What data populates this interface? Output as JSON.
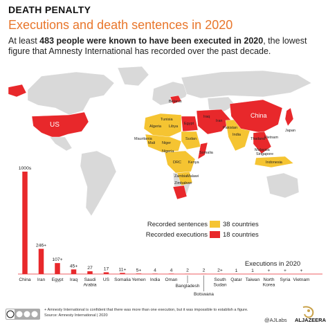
{
  "header": {
    "kicker": "DEATH PENALTY",
    "headline": "Executions and death sentences in 2020",
    "subtitle_pre": "At least ",
    "subtitle_bold": "483 people were known to have been executed in 2020",
    "subtitle_post": ", the lowest figure that Amnesty International has recorded over the past decade."
  },
  "colors": {
    "executions": "#e8282b",
    "sentences": "#f5c432",
    "land": "#d9d9d9",
    "kicker": "#111111",
    "headline": "#e8762b"
  },
  "map": {
    "country_labels": {
      "us": "US",
      "belarus": "Belarus",
      "tunisia": "Tunisia",
      "algeria": "Algeria",
      "libya": "Libya",
      "egypt": "Egypt",
      "mauritania": "Mauritania",
      "mali": "Mali",
      "niger": "Niger",
      "sudan": "Sudan",
      "nigeria": "Nigeria",
      "somalia": "Somalia",
      "drc": "DRC",
      "kenya": "Kenya",
      "malawi": "Malawi",
      "zambia": "Zambia",
      "zimbabwe": "Zimbabwe",
      "iraq": "Iraq",
      "iran": "Iran",
      "pakistan": "Pakistan",
      "india": "India",
      "china": "China",
      "japan": "Japan",
      "thailand": "Thailand",
      "vietnam": "Vietnam",
      "malaysia": "Malaysia",
      "singapore": "Singapore",
      "indonesia": "Indonesia"
    }
  },
  "legend": {
    "sentences_label": "Recorded sentences",
    "sentences_count": "38 countries",
    "executions_label": "Recorded executions",
    "executions_count": "18 countries"
  },
  "chart_data": {
    "type": "bar",
    "title": "Executions in 2020",
    "categories": [
      "China",
      "Iran",
      "Egypt",
      "Iraq",
      "Saudi Arabia",
      "US",
      "Somalia",
      "Yemen",
      "India",
      "Oman",
      "Bangladesh",
      "Botswana",
      "South Sudan",
      "Qatar",
      "Taiwan",
      "North Korea",
      "Syria",
      "Vietnam"
    ],
    "values": [
      1000,
      246,
      107,
      45,
      27,
      17,
      11,
      5,
      4,
      4,
      2,
      2,
      2,
      1,
      1,
      0,
      0,
      0
    ],
    "value_labels": [
      "1000s",
      "246+",
      "107+",
      "45+",
      "27",
      "17",
      "11+",
      "5+",
      "4",
      "4",
      "2",
      "2",
      "2+",
      "1",
      "1",
      "+",
      "+",
      "+"
    ],
    "ylim": [
      0,
      1000
    ]
  },
  "footer": {
    "note": "+ Amnesty International is confident that there was more than one execution, but it was impossible to establish a figure.",
    "source": "Source: Amnesty International | 2020",
    "credit": "@AJLabs",
    "brand": "ALJAZEERA"
  }
}
